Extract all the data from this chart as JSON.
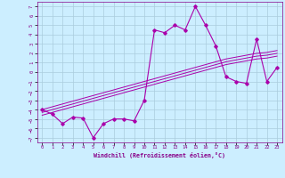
{
  "xlabel": "Windchill (Refroidissement éolien,°C)",
  "bg_color": "#cceeff",
  "grid_color": "#aaccdd",
  "line_color": "#aa00aa",
  "x_data": [
    0,
    1,
    2,
    3,
    4,
    5,
    6,
    7,
    8,
    9,
    10,
    11,
    12,
    13,
    14,
    15,
    16,
    17,
    18,
    19,
    20,
    21,
    22,
    23
  ],
  "y_main": [
    -4.0,
    -4.5,
    -5.5,
    -4.8,
    -4.9,
    -7.0,
    -5.5,
    -5.0,
    -5.0,
    -5.2,
    -3.0,
    4.5,
    4.2,
    5.0,
    4.5,
    7.0,
    5.0,
    2.8,
    -0.5,
    -1.0,
    -1.2,
    3.5,
    -1.0,
    0.5
  ],
  "y_line1": [
    -4.0,
    -3.7,
    -3.4,
    -3.1,
    -2.8,
    -2.5,
    -2.2,
    -1.9,
    -1.6,
    -1.3,
    -1.0,
    -0.7,
    -0.4,
    -0.1,
    0.2,
    0.5,
    0.8,
    1.1,
    1.4,
    1.6,
    1.8,
    2.0,
    2.1,
    2.3
  ],
  "y_line2": [
    -4.3,
    -4.0,
    -3.7,
    -3.4,
    -3.1,
    -2.8,
    -2.5,
    -2.2,
    -1.9,
    -1.6,
    -1.3,
    -1.0,
    -0.7,
    -0.4,
    -0.1,
    0.2,
    0.5,
    0.8,
    1.1,
    1.3,
    1.5,
    1.7,
    1.8,
    2.0
  ],
  "y_line3": [
    -4.6,
    -4.3,
    -4.0,
    -3.7,
    -3.4,
    -3.1,
    -2.8,
    -2.5,
    -2.2,
    -1.9,
    -1.6,
    -1.3,
    -1.0,
    -0.7,
    -0.4,
    -0.1,
    0.2,
    0.5,
    0.8,
    1.0,
    1.2,
    1.4,
    1.5,
    1.7
  ],
  "xlim": [
    -0.5,
    23.5
  ],
  "ylim": [
    -7.5,
    7.5
  ],
  "yticks": [
    -7,
    -6,
    -5,
    -4,
    -3,
    -2,
    -1,
    0,
    1,
    2,
    3,
    4,
    5,
    6,
    7
  ],
  "xticks": [
    0,
    1,
    2,
    3,
    4,
    5,
    6,
    7,
    8,
    9,
    10,
    11,
    12,
    13,
    14,
    15,
    16,
    17,
    18,
    19,
    20,
    21,
    22,
    23
  ]
}
